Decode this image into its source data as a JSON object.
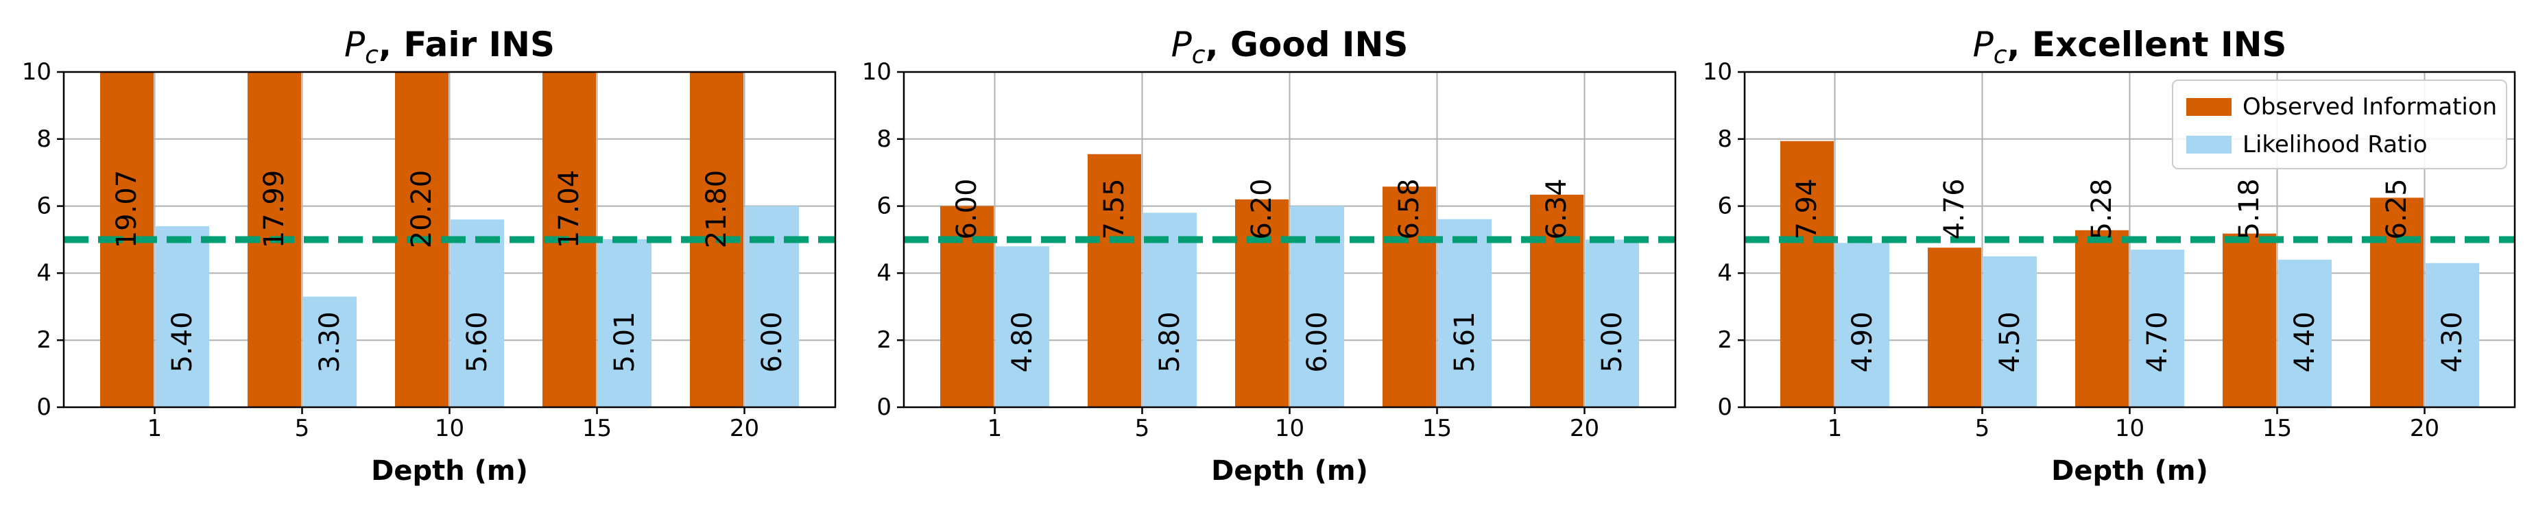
{
  "chart_data": [
    {
      "type": "bar",
      "title_var": "P",
      "title_sub": "c",
      "title_suffix": ", Fair INS",
      "xlabel": "Depth (m)",
      "ylabel": "",
      "categories": [
        "1",
        "5",
        "10",
        "15",
        "20"
      ],
      "ylim": [
        0,
        10
      ],
      "yticks": [
        0,
        2,
        4,
        6,
        8,
        10
      ],
      "grid": true,
      "threshold": 5,
      "series": [
        {
          "name": "Observed Information",
          "color": "#d55e00",
          "values": [
            19.07,
            17.99,
            20.2,
            17.04,
            21.8
          ],
          "labels": [
            "19.07",
            "17.99",
            "20.20",
            "17.04",
            "21.80"
          ]
        },
        {
          "name": "Likelihood Ratio",
          "color": "#a6d6f2",
          "values": [
            5.4,
            3.3,
            5.6,
            5.01,
            6.0
          ],
          "labels": [
            "5.40",
            "3.30",
            "5.60",
            "5.01",
            "6.00"
          ]
        }
      ],
      "threshold_color": "#009e73",
      "legend": false
    },
    {
      "type": "bar",
      "title_var": "P",
      "title_sub": "c",
      "title_suffix": ", Good INS",
      "xlabel": "Depth (m)",
      "ylabel": "",
      "categories": [
        "1",
        "5",
        "10",
        "15",
        "20"
      ],
      "ylim": [
        0,
        10
      ],
      "yticks": [
        0,
        2,
        4,
        6,
        8,
        10
      ],
      "grid": true,
      "threshold": 5,
      "series": [
        {
          "name": "Observed Information",
          "color": "#d55e00",
          "values": [
            6.0,
            7.55,
            6.2,
            6.58,
            6.34
          ],
          "labels": [
            "6.00",
            "7.55",
            "6.20",
            "6.58",
            "6.34"
          ]
        },
        {
          "name": "Likelihood Ratio",
          "color": "#a6d6f2",
          "values": [
            4.8,
            5.8,
            6.0,
            5.61,
            5.0
          ],
          "labels": [
            "4.80",
            "5.80",
            "6.00",
            "5.61",
            "5.00"
          ]
        }
      ],
      "threshold_color": "#009e73",
      "legend": false
    },
    {
      "type": "bar",
      "title_var": "P",
      "title_sub": "c",
      "title_suffix": ", Excellent INS",
      "xlabel": "Depth (m)",
      "ylabel": "",
      "categories": [
        "1",
        "5",
        "10",
        "15",
        "20"
      ],
      "ylim": [
        0,
        10
      ],
      "yticks": [
        0,
        2,
        4,
        6,
        8,
        10
      ],
      "grid": true,
      "threshold": 5,
      "series": [
        {
          "name": "Observed Information",
          "color": "#d55e00",
          "values": [
            7.94,
            4.76,
            5.28,
            5.18,
            6.25
          ],
          "labels": [
            "7.94",
            "4.76",
            "5.28",
            "5.18",
            "6.25"
          ]
        },
        {
          "name": "Likelihood Ratio",
          "color": "#a6d6f2",
          "values": [
            4.9,
            4.5,
            4.7,
            4.4,
            4.3
          ],
          "labels": [
            "4.90",
            "4.50",
            "4.70",
            "4.40",
            "4.30"
          ]
        }
      ],
      "threshold_color": "#009e73",
      "legend": true,
      "legend_position": "top-right"
    }
  ]
}
